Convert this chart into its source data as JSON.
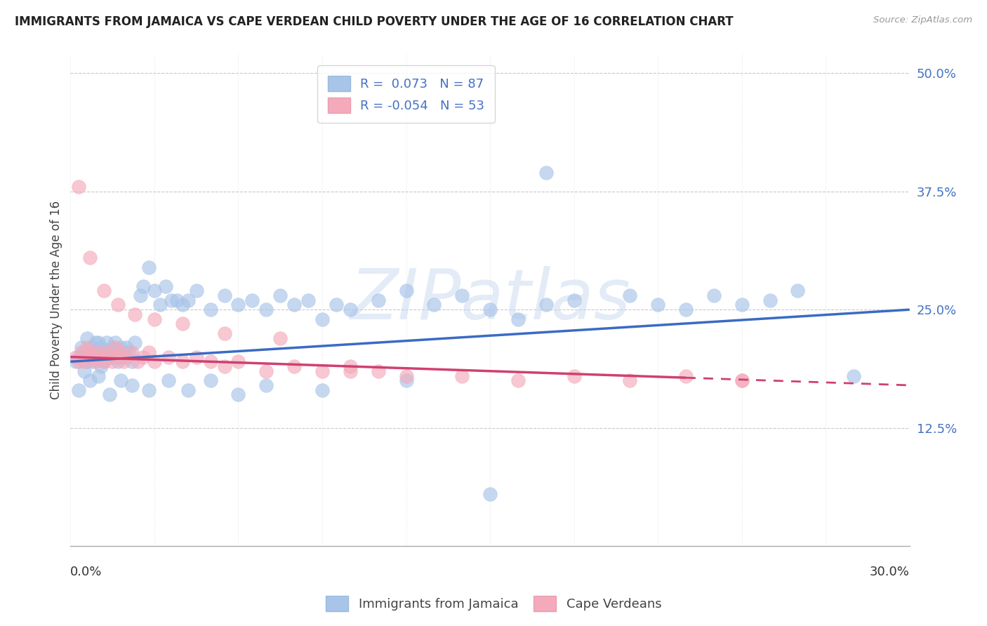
{
  "title": "IMMIGRANTS FROM JAMAICA VS CAPE VERDEAN CHILD POVERTY UNDER THE AGE OF 16 CORRELATION CHART",
  "source": "Source: ZipAtlas.com",
  "ylabel": "Child Poverty Under the Age of 16",
  "xlim": [
    0.0,
    0.3
  ],
  "ylim": [
    0.0,
    0.52
  ],
  "jamaica_R": 0.073,
  "jamaica_N": 87,
  "capeverde_R": -0.054,
  "capeverde_N": 53,
  "jamaica_color": "#A8C4E8",
  "capeverde_color": "#F4AABB",
  "jamaica_line_color": "#3A6BC4",
  "capeverde_line_color": "#D04070",
  "jamaica_line_y0": 0.195,
  "jamaica_line_y1": 0.25,
  "capeverde_line_y0": 0.2,
  "capeverde_line_y1": 0.17,
  "capeverde_line_solid_x": 0.22,
  "watermark_text": "ZIPatlas",
  "legend_label_1": "Immigrants from Jamaica",
  "legend_label_2": "Cape Verdeans",
  "jamaica_x": [
    0.002,
    0.003,
    0.004,
    0.005,
    0.005,
    0.006,
    0.006,
    0.007,
    0.008,
    0.008,
    0.009,
    0.009,
    0.01,
    0.01,
    0.011,
    0.011,
    0.012,
    0.012,
    0.013,
    0.013,
    0.014,
    0.015,
    0.015,
    0.016,
    0.016,
    0.017,
    0.018,
    0.018,
    0.019,
    0.02,
    0.021,
    0.022,
    0.023,
    0.025,
    0.026,
    0.028,
    0.03,
    0.032,
    0.034,
    0.036,
    0.038,
    0.04,
    0.042,
    0.045,
    0.05,
    0.055,
    0.06,
    0.065,
    0.07,
    0.075,
    0.08,
    0.085,
    0.09,
    0.095,
    0.1,
    0.11,
    0.12,
    0.13,
    0.14,
    0.15,
    0.16,
    0.17,
    0.18,
    0.2,
    0.21,
    0.22,
    0.23,
    0.24,
    0.25,
    0.26,
    0.003,
    0.007,
    0.01,
    0.014,
    0.018,
    0.022,
    0.028,
    0.035,
    0.042,
    0.05,
    0.06,
    0.07,
    0.09,
    0.12,
    0.15,
    0.28,
    0.17
  ],
  "jamaica_y": [
    0.195,
    0.2,
    0.21,
    0.205,
    0.185,
    0.195,
    0.22,
    0.2,
    0.21,
    0.195,
    0.205,
    0.215,
    0.2,
    0.215,
    0.19,
    0.21,
    0.205,
    0.195,
    0.215,
    0.2,
    0.205,
    0.21,
    0.2,
    0.215,
    0.205,
    0.195,
    0.21,
    0.2,
    0.205,
    0.21,
    0.205,
    0.195,
    0.215,
    0.265,
    0.275,
    0.295,
    0.27,
    0.255,
    0.275,
    0.26,
    0.26,
    0.255,
    0.26,
    0.27,
    0.25,
    0.265,
    0.255,
    0.26,
    0.25,
    0.265,
    0.255,
    0.26,
    0.24,
    0.255,
    0.25,
    0.26,
    0.27,
    0.255,
    0.265,
    0.25,
    0.24,
    0.255,
    0.26,
    0.265,
    0.255,
    0.25,
    0.265,
    0.255,
    0.26,
    0.27,
    0.165,
    0.175,
    0.18,
    0.16,
    0.175,
    0.17,
    0.165,
    0.175,
    0.165,
    0.175,
    0.16,
    0.17,
    0.165,
    0.175,
    0.055,
    0.18,
    0.395
  ],
  "capeverde_x": [
    0.002,
    0.003,
    0.004,
    0.005,
    0.006,
    0.007,
    0.008,
    0.009,
    0.01,
    0.011,
    0.012,
    0.013,
    0.014,
    0.015,
    0.016,
    0.017,
    0.018,
    0.019,
    0.02,
    0.022,
    0.024,
    0.026,
    0.028,
    0.03,
    0.035,
    0.04,
    0.045,
    0.05,
    0.055,
    0.06,
    0.07,
    0.08,
    0.09,
    0.1,
    0.11,
    0.12,
    0.14,
    0.16,
    0.18,
    0.2,
    0.22,
    0.24,
    0.003,
    0.007,
    0.012,
    0.017,
    0.023,
    0.03,
    0.04,
    0.055,
    0.075,
    0.1,
    0.24
  ],
  "capeverde_y": [
    0.2,
    0.195,
    0.205,
    0.195,
    0.21,
    0.205,
    0.2,
    0.195,
    0.205,
    0.2,
    0.195,
    0.205,
    0.2,
    0.195,
    0.21,
    0.2,
    0.205,
    0.195,
    0.2,
    0.205,
    0.195,
    0.2,
    0.205,
    0.195,
    0.2,
    0.195,
    0.2,
    0.195,
    0.19,
    0.195,
    0.185,
    0.19,
    0.185,
    0.19,
    0.185,
    0.18,
    0.18,
    0.175,
    0.18,
    0.175,
    0.18,
    0.175,
    0.38,
    0.305,
    0.27,
    0.255,
    0.245,
    0.24,
    0.235,
    0.225,
    0.22,
    0.185,
    0.175
  ]
}
